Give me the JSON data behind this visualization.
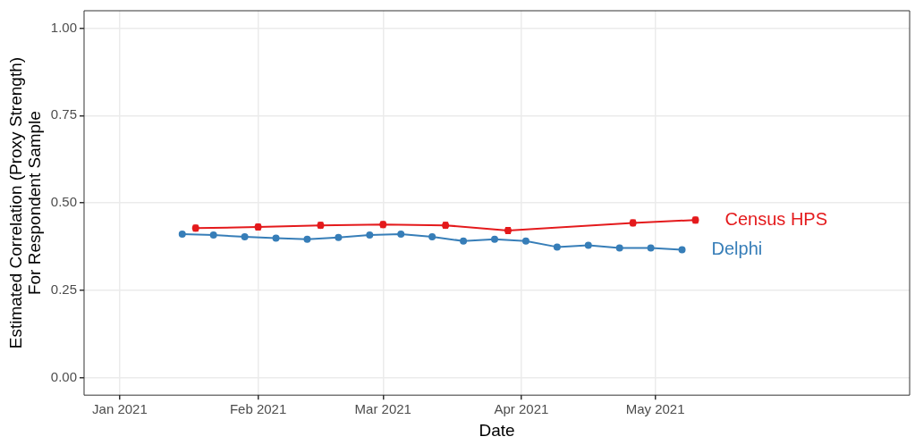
{
  "chart_data": {
    "type": "line",
    "xlabel": "Date",
    "ylabel": "Estimated Correlation (Proxy Strength)\nFor Respondent Sample",
    "xlim": [
      "2020-12-24",
      "2021-06-27"
    ],
    "xticks": [
      {
        "value": "2021-01-01",
        "label": "Jan 2021"
      },
      {
        "value": "2021-02-01",
        "label": "Feb 2021"
      },
      {
        "value": "2021-03-01",
        "label": "Mar 2021"
      },
      {
        "value": "2021-04-01",
        "label": "Apr 2021"
      },
      {
        "value": "2021-05-01",
        "label": "May 2021"
      }
    ],
    "ylim": [
      -0.05,
      1.05
    ],
    "yticks": [
      {
        "value": 0,
        "label": "0.00"
      },
      {
        "value": 0.25,
        "label": "0.25"
      },
      {
        "value": 0.5,
        "label": "0.50"
      },
      {
        "value": 0.75,
        "label": "0.75"
      },
      {
        "value": 1,
        "label": "1.00"
      }
    ],
    "grid": true,
    "legend": false,
    "marker": "circle",
    "line_style": "solid",
    "series": [
      {
        "name": "Census HPS",
        "color": "#e41a1c",
        "x": [
          "2021-01-18",
          "2021-02-01",
          "2021-02-15",
          "2021-03-01",
          "2021-03-15",
          "2021-03-29",
          "2021-04-26",
          "2021-05-10"
        ],
        "values": [
          0.428,
          0.431,
          0.436,
          0.438,
          0.436,
          0.421,
          0.443,
          0.451
        ],
        "errors": [
          0.008,
          0.008,
          0.008,
          0.008,
          0.008,
          0.008,
          0.008,
          0.008
        ]
      },
      {
        "name": "Delphi",
        "color": "#377eb8",
        "x": [
          "2021-01-15",
          "2021-01-22",
          "2021-01-29",
          "2021-02-05",
          "2021-02-12",
          "2021-02-19",
          "2021-02-26",
          "2021-03-05",
          "2021-03-12",
          "2021-03-19",
          "2021-03-26",
          "2021-04-02",
          "2021-04-09",
          "2021-04-16",
          "2021-04-23",
          "2021-04-30",
          "2021-05-07"
        ],
        "values": [
          0.411,
          0.408,
          0.403,
          0.399,
          0.396,
          0.401,
          0.408,
          0.411,
          0.403,
          0.391,
          0.396,
          0.391,
          0.374,
          0.379,
          0.371,
          0.371,
          0.366
        ],
        "errors": [
          0.003,
          0.003,
          0.003,
          0.003,
          0.003,
          0.003,
          0.003,
          0.003,
          0.003,
          0.003,
          0.003,
          0.003,
          0.003,
          0.003,
          0.003,
          0.003,
          0.003
        ]
      }
    ]
  }
}
